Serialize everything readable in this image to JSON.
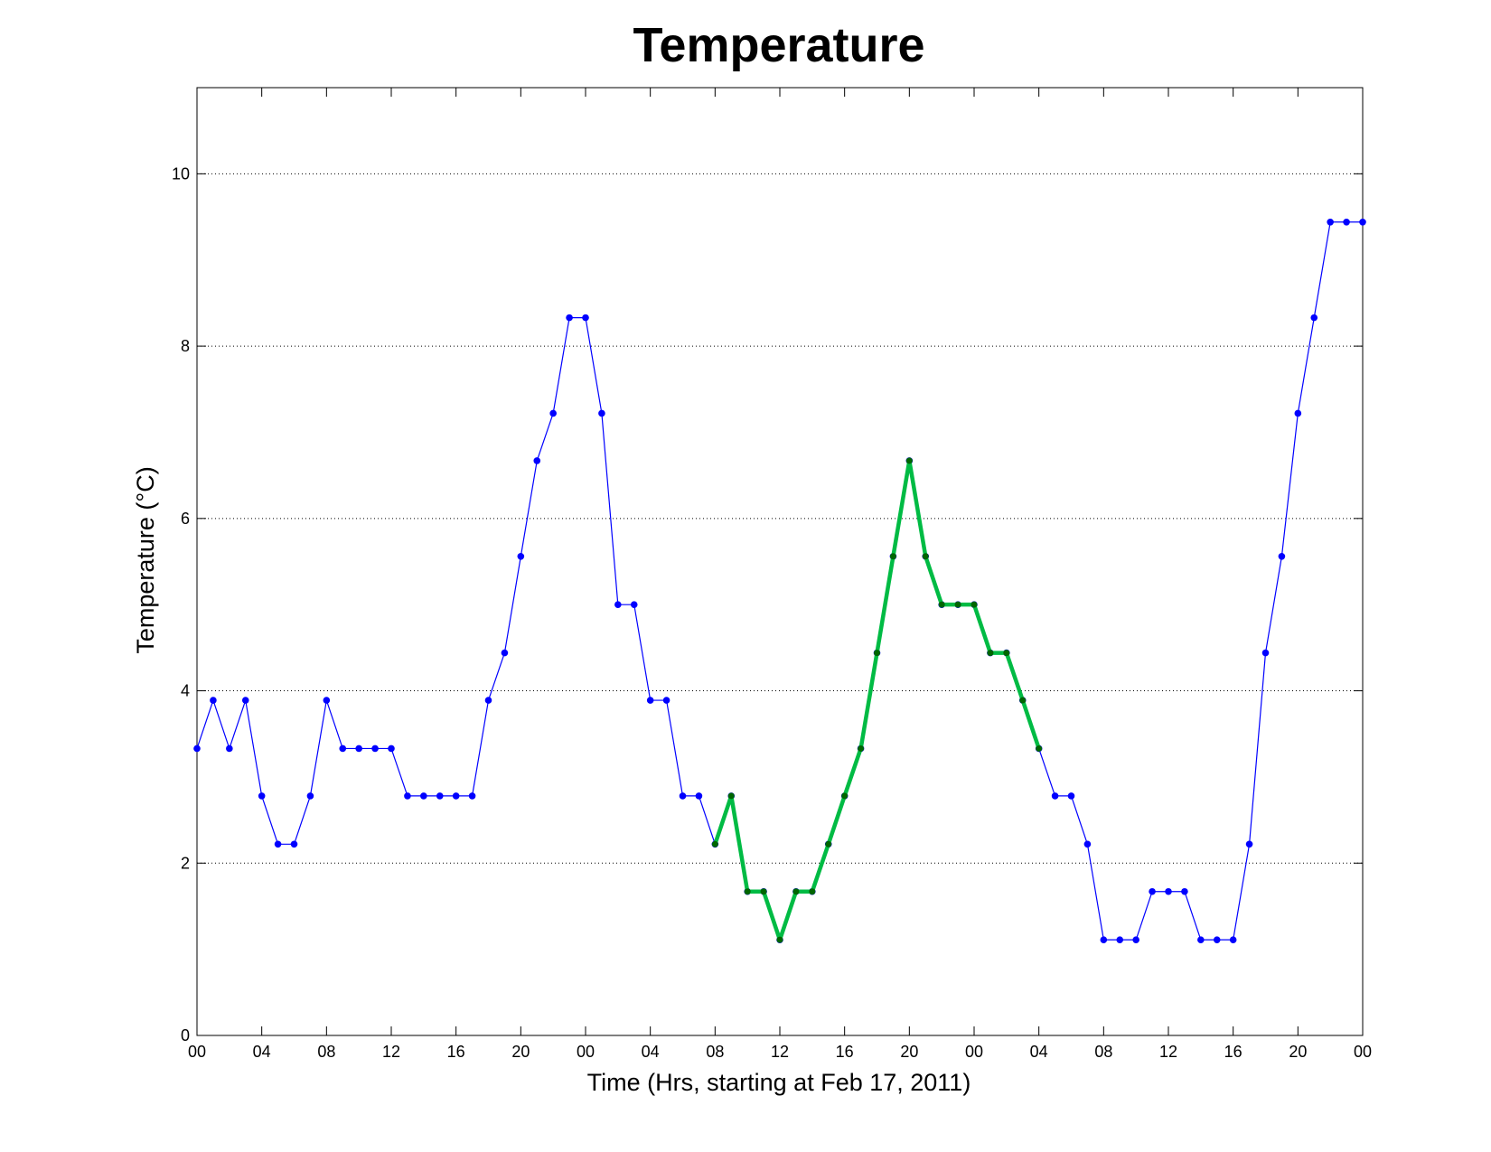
{
  "chart_data": {
    "type": "line",
    "title": "Temperature",
    "xlabel": "Time (Hrs, starting at Feb 17, 2011)",
    "ylabel": "Temperature (°C)",
    "ylim": [
      0,
      11
    ],
    "xlim": [
      "2011-02-17 00:00",
      "2011-02-20 00:00"
    ],
    "grid": "horizontal dotted",
    "x_tick_labels": [
      "00",
      "04",
      "08",
      "12",
      "16",
      "20",
      "00",
      "04",
      "08",
      "12",
      "16",
      "20",
      "00",
      "04",
      "08",
      "12",
      "16",
      "20",
      "00"
    ],
    "y_tick_labels": [
      "0",
      "2",
      "4",
      "6",
      "8",
      "10"
    ],
    "series": [
      {
        "color": "#0000ff",
        "start": "2011-02-17 00:00",
        "interval_hours": 1,
        "values": [
          3.33,
          3.89,
          3.33,
          3.89,
          2.78,
          2.22,
          2.22,
          2.78,
          3.89,
          3.33,
          3.33,
          3.33,
          3.33,
          2.78,
          2.78,
          2.78,
          2.78,
          2.78,
          3.89,
          4.44,
          5.56,
          6.67,
          7.22,
          8.33,
          8.33,
          7.22,
          5.0,
          5.0,
          3.89,
          3.89,
          2.78,
          2.78,
          2.22,
          2.78,
          1.67,
          1.67,
          1.11,
          1.67,
          1.67,
          2.22,
          2.78,
          3.33,
          4.44,
          5.56,
          6.67,
          5.56,
          5.0,
          5.0,
          5.0,
          4.44,
          4.44,
          3.89,
          3.33,
          2.78,
          2.78,
          2.22,
          1.11,
          1.11,
          1.11,
          1.67,
          1.67,
          1.67,
          1.11,
          1.11,
          1.11,
          2.22,
          4.44,
          5.56,
          7.22,
          8.33,
          9.44,
          9.44,
          9.44
        ]
      },
      {
        "color": "#00bb44",
        "marker_color": "#006600",
        "start": "2011-02-18 08:00",
        "interval_hours": 1,
        "values": [
          2.22,
          2.78,
          1.67,
          1.67,
          1.11,
          1.67,
          1.67,
          2.22,
          2.78,
          3.33,
          4.44,
          5.56,
          6.67,
          5.56,
          5.0,
          5.0,
          5.0,
          4.44,
          4.44,
          3.89,
          3.33
        ]
      }
    ]
  }
}
